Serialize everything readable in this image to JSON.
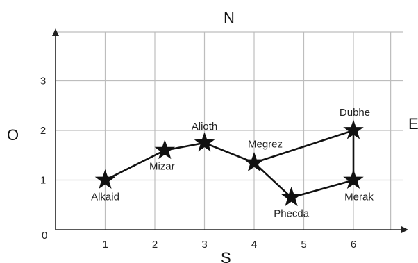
{
  "compass": {
    "north": "N",
    "south": "S",
    "west": "O",
    "east": "E"
  },
  "x_ticks": [
    "1",
    "2",
    "3",
    "4",
    "5",
    "6"
  ],
  "y_ticks": [
    "1",
    "2",
    "3"
  ],
  "origin_label": "0",
  "stars": [
    {
      "name": "Alkaid",
      "x": 1.0,
      "y": 1.0
    },
    {
      "name": "Mizar",
      "x": 2.2,
      "y": 1.6
    },
    {
      "name": "Alioth",
      "x": 3.0,
      "y": 1.75
    },
    {
      "name": "Megrez",
      "x": 4.0,
      "y": 1.35
    },
    {
      "name": "Phecda",
      "x": 4.75,
      "y": 0.65
    },
    {
      "name": "Merak",
      "x": 6.0,
      "y": 1.0
    },
    {
      "name": "Dubhe",
      "x": 6.0,
      "y": 2.0
    }
  ],
  "path_order": [
    "Alkaid",
    "Mizar",
    "Alioth",
    "Megrez",
    "Phecda",
    "Merak",
    "Dubhe",
    "Megrez"
  ],
  "colors": {
    "grid": "#bdbdbd",
    "axis": "#222222",
    "marker": "#111111"
  }
}
